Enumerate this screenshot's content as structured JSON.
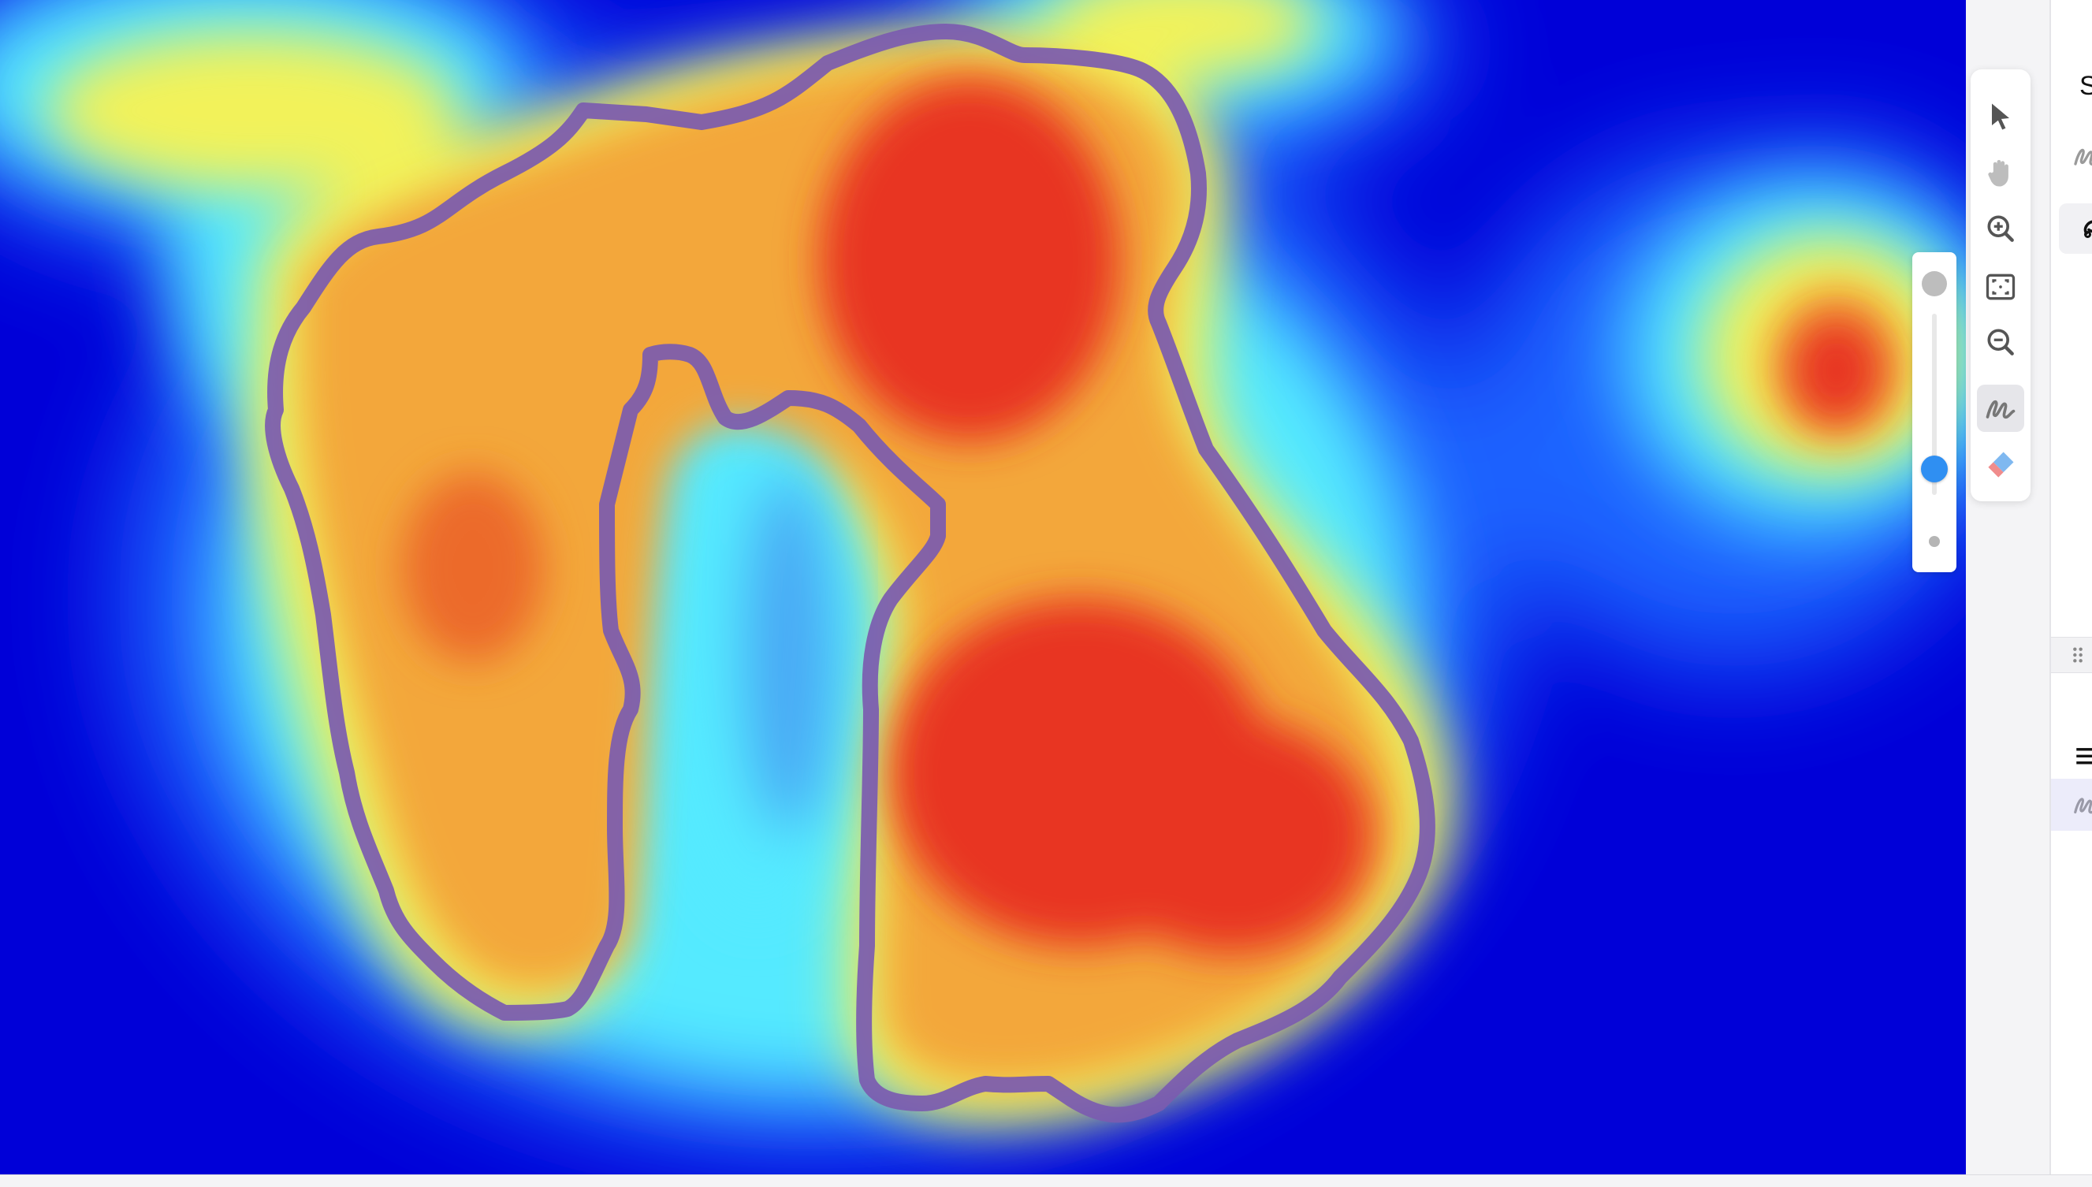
{
  "viewer": {
    "name": "heatmap-view",
    "annotation_color": "#7b5bb0",
    "colormap": [
      "#0000d8",
      "#1e63ff",
      "#55eaff",
      "#f2f25a",
      "#f3a73a",
      "#e83422"
    ]
  },
  "toolbar": {
    "tools": [
      {
        "id": "select",
        "icon": "cursor-icon",
        "active": false
      },
      {
        "id": "pan",
        "icon": "hand-icon",
        "active": false
      },
      {
        "id": "zoom-in",
        "icon": "zoom-in-icon",
        "active": false
      },
      {
        "id": "fit",
        "icon": "fit-screen-icon",
        "active": false
      },
      {
        "id": "zoom-out",
        "icon": "zoom-out-icon",
        "active": false
      },
      {
        "id": "draw",
        "icon": "freehand-draw-icon",
        "active": true
      },
      {
        "id": "erase",
        "icon": "eraser-icon",
        "active": false
      }
    ]
  },
  "brush_size_slider": {
    "level": 0.62,
    "thumb_color": "#2f8ff2"
  },
  "side_panel": {
    "header_text": "S",
    "list_icon": "list-icon",
    "draw_icon": "freehand-draw-icon"
  }
}
